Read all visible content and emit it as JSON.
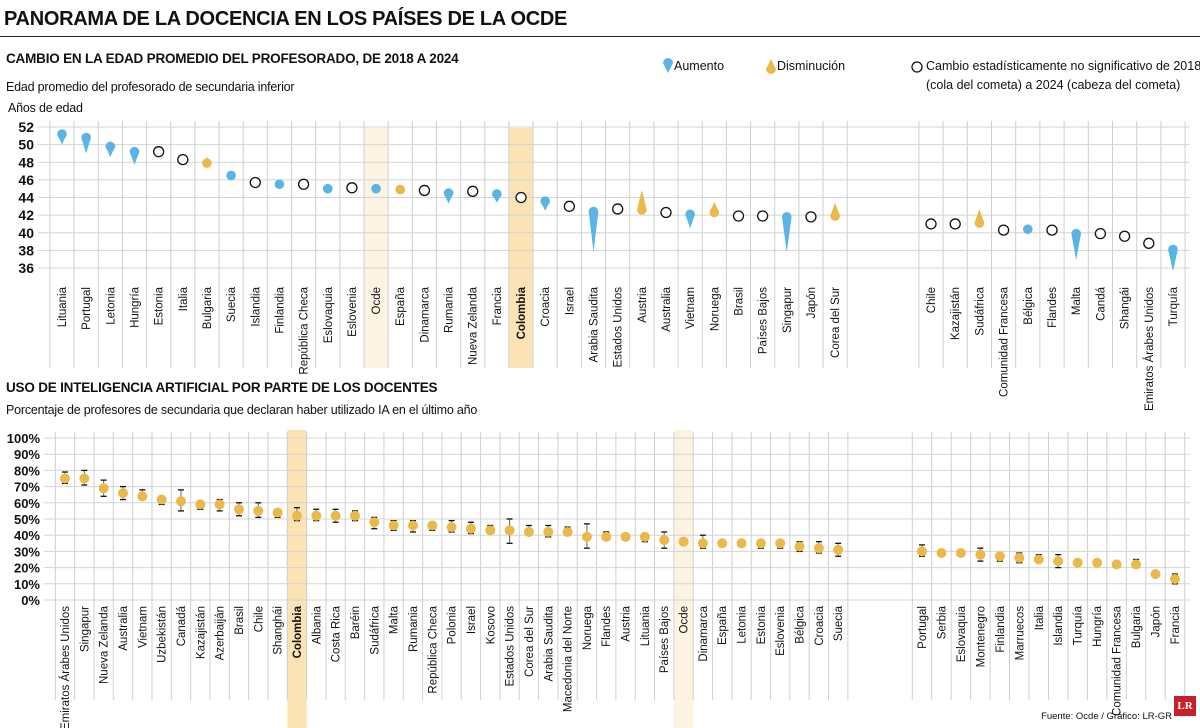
{
  "title": "PANORAMA DE LA DOCENCIA EN LOS PAÍSES DE LA OCDE",
  "source": "Fuente: Ocde / Gráfico: LR-GR",
  "logo": "LR",
  "colors": {
    "increase": "#5ab4e5",
    "decrease": "#e9b949",
    "highlight_colombia": "#fbe3b6",
    "highlight_ocde": "#fdf3e2",
    "point": "#e9b949"
  },
  "legend": {
    "increase": "Aumento",
    "decrease": "Disminución",
    "ns_line1": "Cambio estadísticamente no significativo de 2018",
    "ns_line2": "(cola del cometa) a 2024 (cabeza del cometa)"
  },
  "chart_data": [
    {
      "type": "scatter",
      "subtype": "comet",
      "title": "CAMBIO EN LA EDAD PROMEDIO DEL PROFESORADO, DE 2018 A 2024",
      "subtitle": "Edad promedio del profesorado de secundaria inferior",
      "ylabel": "Años de edad",
      "ylim": [
        36,
        52
      ],
      "yticks": [
        52,
        50,
        48,
        46,
        44,
        42,
        40,
        38,
        36
      ],
      "grid": true,
      "highlight": [
        "Colombia",
        "Ocde"
      ],
      "groups": [
        [
          {
            "name": "Lituania",
            "y2018": 50.0,
            "y2024": 51.2,
            "change": "increase"
          },
          {
            "name": "Portugal",
            "y2018": 49.0,
            "y2024": 50.8,
            "change": "increase"
          },
          {
            "name": "Letonia",
            "y2018": 48.6,
            "y2024": 49.8,
            "change": "increase"
          },
          {
            "name": "Hungría",
            "y2018": 47.7,
            "y2024": 49.2,
            "change": "increase"
          },
          {
            "name": "Estonia",
            "y2018": 49.2,
            "y2024": 49.2,
            "change": "ns"
          },
          {
            "name": "Italia",
            "y2018": 48.3,
            "y2024": 48.3,
            "change": "ns"
          },
          {
            "name": "Bulgaria",
            "y2018": 48.6,
            "y2024": 47.9,
            "change": "decrease"
          },
          {
            "name": "Suecia",
            "y2018": 46.1,
            "y2024": 46.5,
            "change": "increase"
          },
          {
            "name": "Islandia",
            "y2018": 45.7,
            "y2024": 45.7,
            "change": "ns"
          },
          {
            "name": "Finlandia",
            "y2018": 45.2,
            "y2024": 45.5,
            "change": "increase"
          },
          {
            "name": "República Checa",
            "y2018": 45.5,
            "y2024": 45.5,
            "change": "ns"
          },
          {
            "name": "Eslovaquia",
            "y2018": 44.7,
            "y2024": 45.0,
            "change": "increase"
          },
          {
            "name": "Eslovenia",
            "y2018": 45.1,
            "y2024": 45.1,
            "change": "ns"
          },
          {
            "name": "Ocde",
            "y2018": 44.9,
            "y2024": 45.0,
            "change": "increase"
          },
          {
            "name": "España",
            "y2018": 45.0,
            "y2024": 44.9,
            "change": "decrease"
          },
          {
            "name": "Dinamarca",
            "y2018": 44.8,
            "y2024": 44.8,
            "change": "ns"
          },
          {
            "name": "Rumania",
            "y2018": 43.3,
            "y2024": 44.5,
            "change": "increase"
          },
          {
            "name": "Nueva Zelanda",
            "y2018": 44.7,
            "y2024": 44.7,
            "change": "ns"
          },
          {
            "name": "Francia",
            "y2018": 43.4,
            "y2024": 44.4,
            "change": "increase"
          },
          {
            "name": "Colombia",
            "y2018": 44.0,
            "y2024": 44.0,
            "change": "ns"
          },
          {
            "name": "Croacia",
            "y2018": 42.5,
            "y2024": 43.6,
            "change": "increase"
          },
          {
            "name": "Israel",
            "y2018": 43.0,
            "y2024": 43.0,
            "change": "ns"
          },
          {
            "name": "Arabia Saudita",
            "y2018": 37.8,
            "y2024": 42.4,
            "change": "increase"
          },
          {
            "name": "Estados Unidos",
            "y2018": 42.7,
            "y2024": 42.7,
            "change": "ns"
          },
          {
            "name": "Austria",
            "y2018": 44.9,
            "y2024": 42.6,
            "change": "decrease"
          },
          {
            "name": "Australia",
            "y2018": 42.3,
            "y2024": 42.3,
            "change": "ns"
          },
          {
            "name": "Vietnam",
            "y2018": 40.5,
            "y2024": 42.1,
            "change": "increase"
          },
          {
            "name": "Noruega",
            "y2018": 43.5,
            "y2024": 42.3,
            "change": "decrease"
          },
          {
            "name": "Brasil",
            "y2018": 41.9,
            "y2024": 41.9,
            "change": "ns"
          },
          {
            "name": "Países Bajos",
            "y2018": 41.9,
            "y2024": 41.9,
            "change": "ns"
          },
          {
            "name": "Singapur",
            "y2018": 37.8,
            "y2024": 41.8,
            "change": "increase"
          },
          {
            "name": "Japón",
            "y2018": 41.8,
            "y2024": 41.8,
            "change": "ns"
          },
          {
            "name": "Corea del Sur",
            "y2018": 43.4,
            "y2024": 41.9,
            "change": "decrease"
          }
        ],
        [
          {
            "name": "Chile",
            "y2018": 41.0,
            "y2024": 41.0,
            "change": "ns"
          },
          {
            "name": "Kazajistán",
            "y2018": 41.0,
            "y2024": 41.0,
            "change": "ns"
          },
          {
            "name": "Sudáfrica",
            "y2018": 42.7,
            "y2024": 41.1,
            "change": "decrease"
          },
          {
            "name": "Comunidad Francesa",
            "y2018": 40.3,
            "y2024": 40.3,
            "change": "ns"
          },
          {
            "name": "Bélgica",
            "y2018": 40.0,
            "y2024": 40.4,
            "change": "increase"
          },
          {
            "name": "Flandes",
            "y2018": 40.3,
            "y2024": 40.3,
            "change": "ns"
          },
          {
            "name": "Malta",
            "y2018": 36.9,
            "y2024": 39.9,
            "change": "increase"
          },
          {
            "name": "Candá",
            "y2018": 39.9,
            "y2024": 39.9,
            "change": "ns"
          },
          {
            "name": "Shangái",
            "y2018": 39.6,
            "y2024": 39.6,
            "change": "ns"
          },
          {
            "name": "Emiratos Árabes Unidos",
            "y2018": 38.8,
            "y2024": 38.8,
            "change": "ns"
          },
          {
            "name": "Turquía",
            "y2018": 35.6,
            "y2024": 38.1,
            "change": "increase"
          }
        ]
      ]
    },
    {
      "type": "scatter",
      "subtype": "point-with-error-bars",
      "title": "USO DE INTELIGENCIA ARTIFICIAL POR PARTE DE LOS DOCENTES",
      "subtitle": "Porcentaje de profesores de secundaria que declaran haber utilizado IA en el último año",
      "ylim": [
        0,
        100
      ],
      "yticks": [
        "100%",
        "90%",
        "80%",
        "70%",
        "60%",
        "50%",
        "40%",
        "30%",
        "20%",
        "10%",
        "0%"
      ],
      "grid": true,
      "highlight": [
        "Colombia",
        "Ocde"
      ],
      "groups": [
        [
          {
            "name": "Emiratos Árabes Unidos",
            "value": 75,
            "low": 72,
            "high": 79
          },
          {
            "name": "Singapur",
            "value": 75,
            "low": 71,
            "high": 80
          },
          {
            "name": "Nueva Zelanda",
            "value": 69,
            "low": 64,
            "high": 74
          },
          {
            "name": "Australia",
            "value": 66,
            "low": 62,
            "high": 70
          },
          {
            "name": "Vietnam",
            "value": 64,
            "low": 62,
            "high": 68
          },
          {
            "name": "Uzbekistán",
            "value": 62,
            "low": 59,
            "high": 64
          },
          {
            "name": "Canadá",
            "value": 61,
            "low": 55,
            "high": 68
          },
          {
            "name": "Kazajistán",
            "value": 59,
            "low": 56,
            "high": 61
          },
          {
            "name": "Azerbaiján",
            "value": 59,
            "low": 55,
            "high": 62
          },
          {
            "name": "Brasil",
            "value": 56,
            "low": 52,
            "high": 60
          },
          {
            "name": "Chile",
            "value": 55,
            "low": 51,
            "high": 60
          },
          {
            "name": "Shanghái",
            "value": 54,
            "low": 51,
            "high": 56
          },
          {
            "name": "Colombia",
            "value": 52,
            "low": 49,
            "high": 57
          },
          {
            "name": "Albania",
            "value": 52,
            "low": 49,
            "high": 56
          },
          {
            "name": "Costa Rica",
            "value": 52,
            "low": 48,
            "high": 56
          },
          {
            "name": "Baréin",
            "value": 52,
            "low": 49,
            "high": 55
          },
          {
            "name": "Sudáfrica",
            "value": 48,
            "low": 44,
            "high": 51
          },
          {
            "name": "Malta",
            "value": 46,
            "low": 43,
            "high": 49
          },
          {
            "name": "Rumania",
            "value": 46,
            "low": 42,
            "high": 49
          },
          {
            "name": "República Checa",
            "value": 46,
            "low": 43,
            "high": 48
          },
          {
            "name": "Polonia",
            "value": 45,
            "low": 42,
            "high": 49
          },
          {
            "name": "Israel",
            "value": 44,
            "low": 41,
            "high": 48
          },
          {
            "name": "Kosovo",
            "value": 43,
            "low": 41,
            "high": 46
          },
          {
            "name": "Estados Unidos",
            "value": 43,
            "low": 35,
            "high": 50
          },
          {
            "name": "Corea del Sur",
            "value": 42,
            "low": 40,
            "high": 46
          },
          {
            "name": "Arabia Saudita",
            "value": 42,
            "low": 39,
            "high": 46
          },
          {
            "name": "Macedonia del Norte",
            "value": 42,
            "low": 40,
            "high": 45
          },
          {
            "name": "Noruega",
            "value": 39,
            "low": 32,
            "high": 47
          },
          {
            "name": "Flandes",
            "value": 39,
            "low": 37,
            "high": 42
          },
          {
            "name": "Austria",
            "value": 39,
            "low": 37,
            "high": 41
          },
          {
            "name": "Lituania",
            "value": 39,
            "low": 36,
            "high": 41
          },
          {
            "name": "Países Bajos",
            "value": 37,
            "low": 32,
            "high": 42
          },
          {
            "name": "Ocde",
            "value": 36,
            "low": null,
            "high": null
          },
          {
            "name": "Dinamarca",
            "value": 35,
            "low": 32,
            "high": 40
          },
          {
            "name": "España",
            "value": 35,
            "low": 34,
            "high": 36
          },
          {
            "name": "Letonia",
            "value": 35,
            "low": 33,
            "high": 37
          },
          {
            "name": "Estonia",
            "value": 35,
            "low": 32,
            "high": 37
          },
          {
            "name": "Eslovenia",
            "value": 35,
            "low": 32,
            "high": 37
          },
          {
            "name": "Bélgica",
            "value": 33,
            "low": 30,
            "high": 36
          },
          {
            "name": "Croacia",
            "value": 32,
            "low": 29,
            "high": 36
          },
          {
            "name": "Suecia",
            "value": 31,
            "low": 27,
            "high": 35
          }
        ],
        [
          {
            "name": "Portugal",
            "value": 30,
            "low": 27,
            "high": 34
          },
          {
            "name": "Serbia",
            "value": 29,
            "low": 28,
            "high": 30
          },
          {
            "name": "Eslovaquia",
            "value": 29,
            "low": 27,
            "high": 31
          },
          {
            "name": "Montenegro",
            "value": 28,
            "low": 24,
            "high": 32
          },
          {
            "name": "Finlandia",
            "value": 27,
            "low": 24,
            "high": 29
          },
          {
            "name": "Marruecos",
            "value": 26,
            "low": 23,
            "high": 29
          },
          {
            "name": "Italia",
            "value": 25,
            "low": 23,
            "high": 28
          },
          {
            "name": "Islandia",
            "value": 24,
            "low": 20,
            "high": 28
          },
          {
            "name": "Turquía",
            "value": 23,
            "low": 22,
            "high": 25
          },
          {
            "name": "Hungría",
            "value": 23,
            "low": 21,
            "high": 24
          },
          {
            "name": "Comunidad Francesa",
            "value": 22,
            "low": 21,
            "high": 23
          },
          {
            "name": "Bulgaria",
            "value": 22,
            "low": 20,
            "high": 25
          },
          {
            "name": "Japón",
            "value": 16,
            "low": 15,
            "high": 17
          },
          {
            "name": "Francia",
            "value": 13,
            "low": 10,
            "high": 16
          }
        ]
      ]
    }
  ]
}
